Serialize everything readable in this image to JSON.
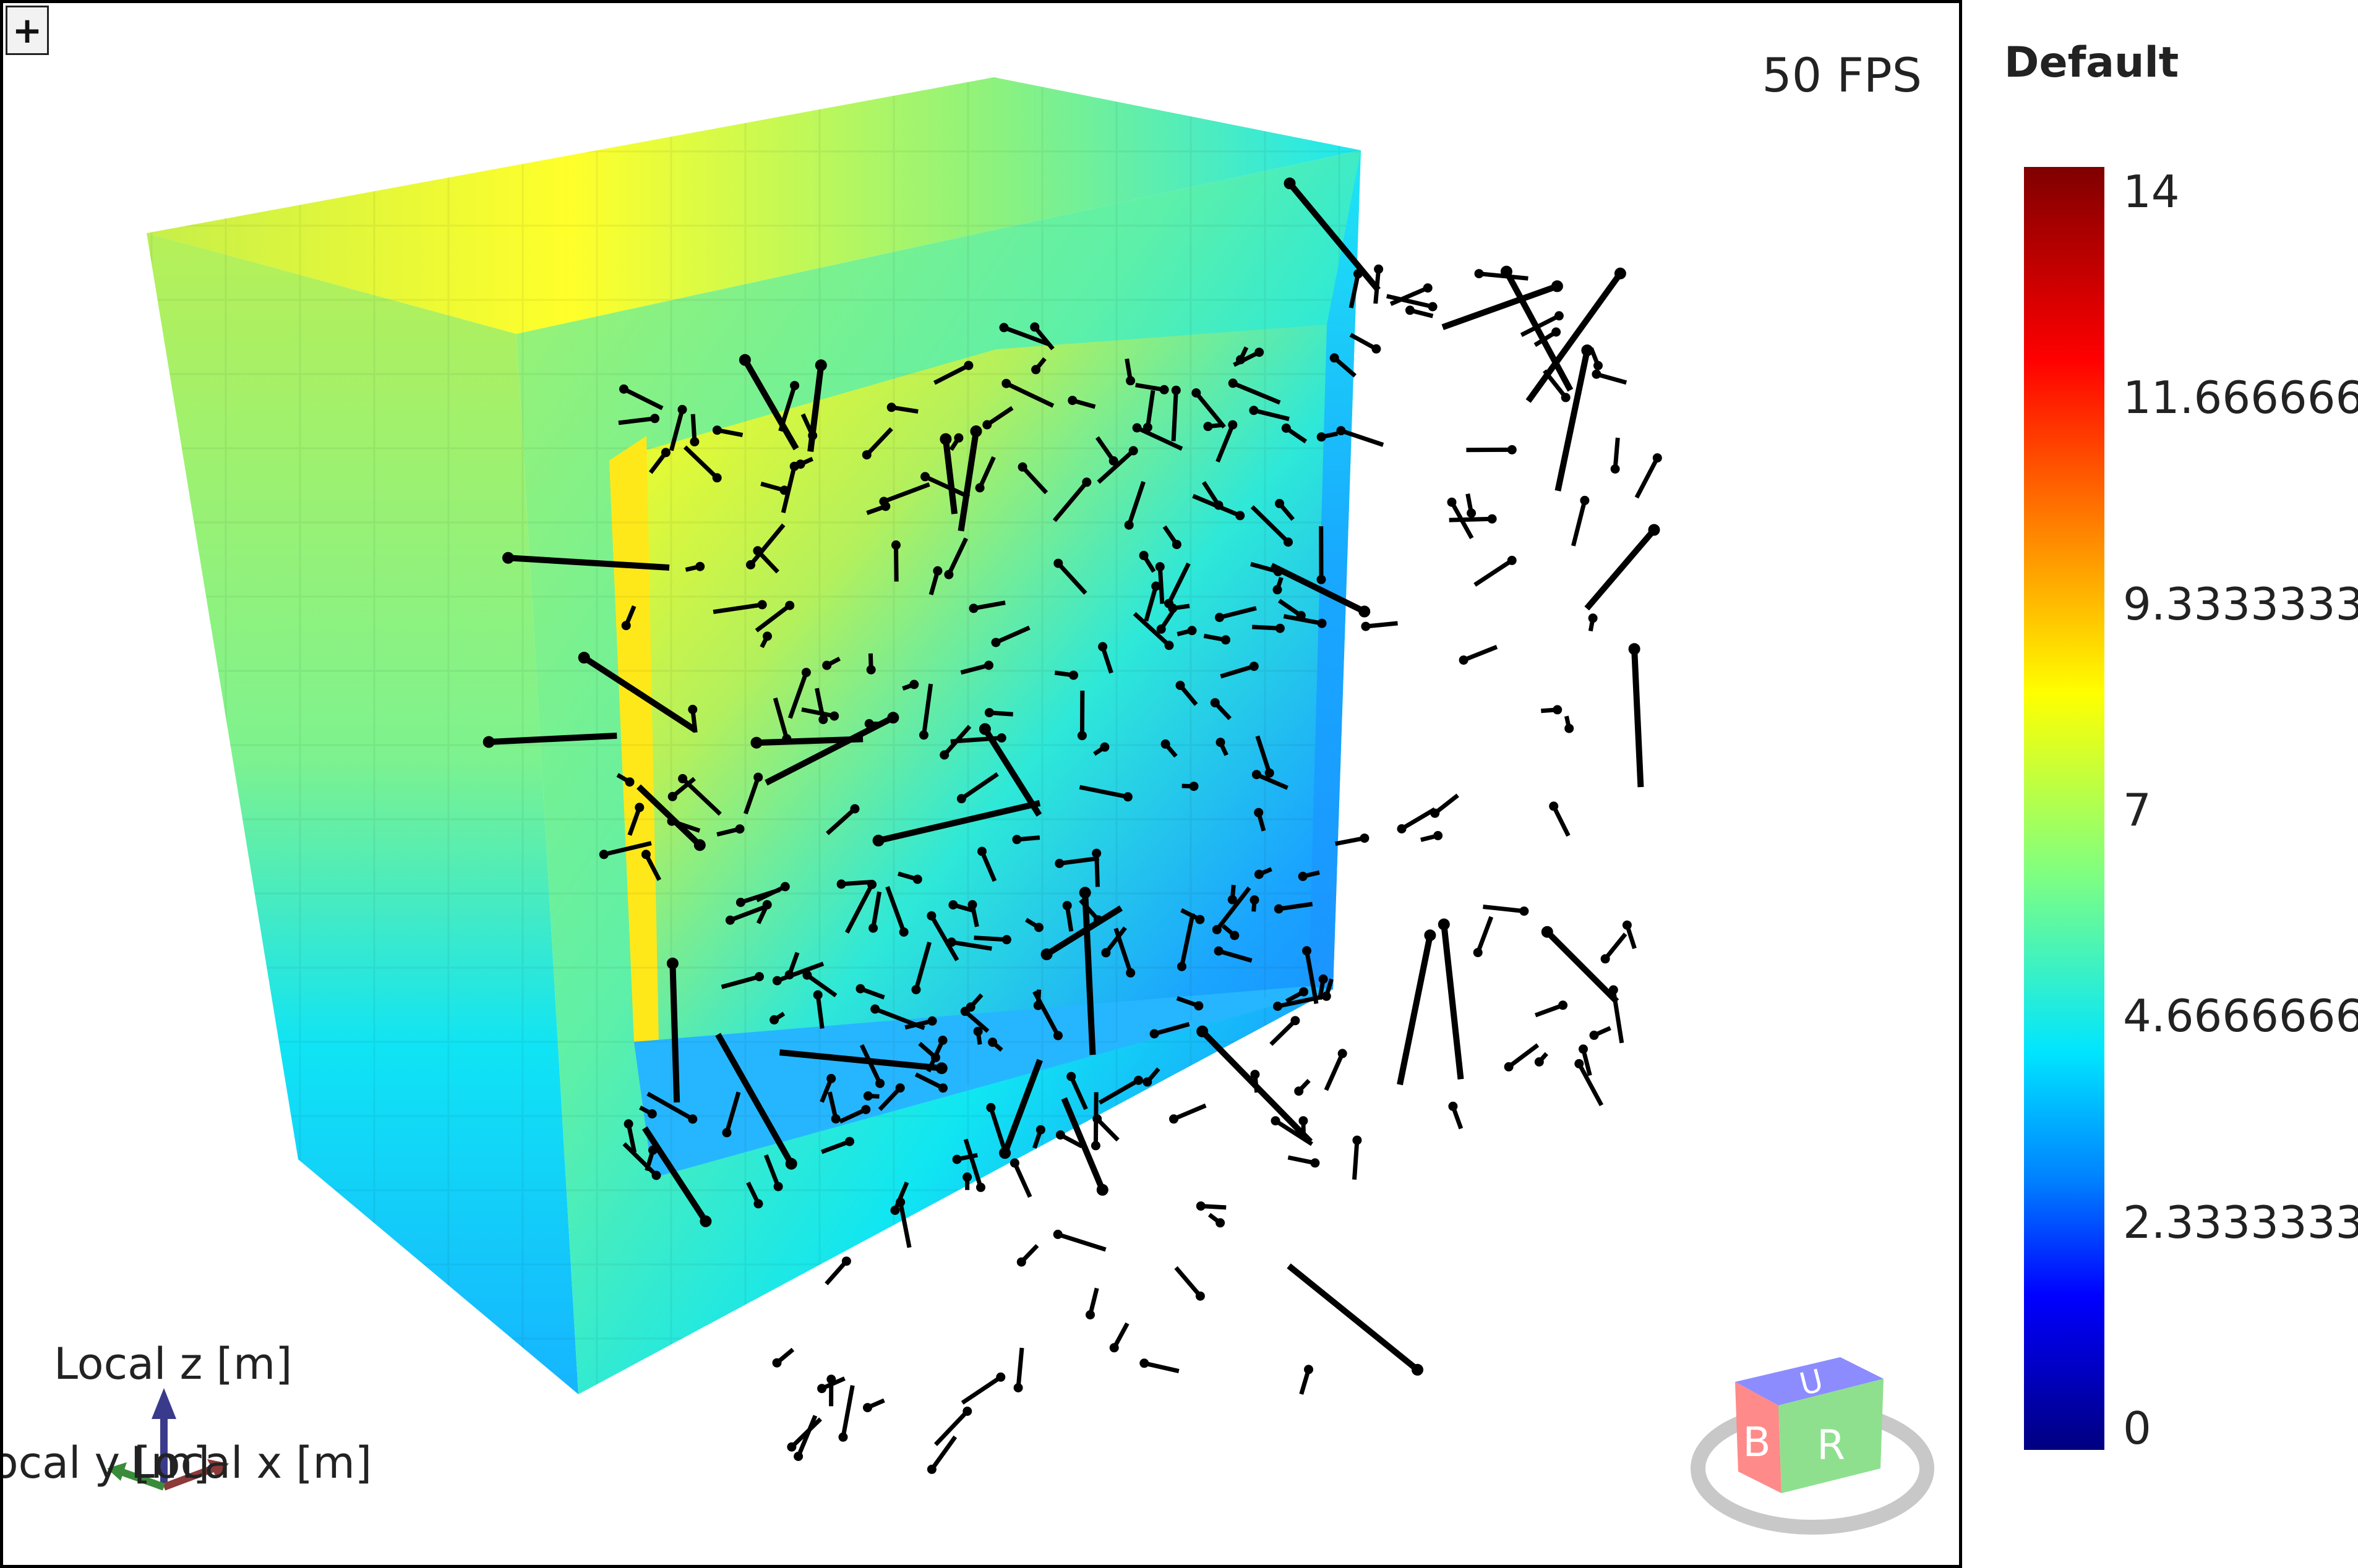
{
  "viewport": {
    "fps_label": "50 FPS",
    "expand_symbol": "+",
    "axes": {
      "z_label": "Local z [m]",
      "y_label": "Local y [m]",
      "x_label": "Local x [m]"
    },
    "view_cube": {
      "up": "U",
      "back": "B",
      "right": "R",
      "colors": {
        "up": "#8c8cff",
        "back": "#ff8a8a",
        "right": "#8ee08e"
      }
    }
  },
  "legend": {
    "title": "Default",
    "ticks": [
      "14",
      "11.66666667",
      "9.333333333",
      "7",
      "4.666666667",
      "2.333333333",
      "0"
    ],
    "min": 0,
    "max": 14,
    "colormap": [
      "#7f0000",
      "#ff0000",
      "#ff8000",
      "#ffff00",
      "#80ff80",
      "#00e5ff",
      "#0080ff",
      "#0000ff",
      "#000080"
    ]
  }
}
